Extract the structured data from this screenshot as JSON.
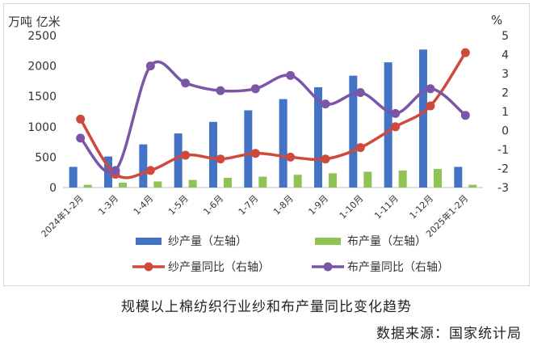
{
  "chart_data": {
    "type": "bar",
    "left_unit": "万吨 亿米",
    "right_unit": "%",
    "categories": [
      "2024年1-2月",
      "1-3月",
      "1-4月",
      "1-5月",
      "1-6月",
      "1-7月",
      "1-8月",
      "1-9月",
      "1-10月",
      "1-11月",
      "1-12月",
      "2025年1-2月"
    ],
    "left_axis": {
      "min": 0,
      "max": 2500,
      "ticks": [
        "0",
        "500",
        "1000",
        "1500",
        "2000",
        "2500"
      ]
    },
    "right_axis": {
      "min": -3,
      "max": 5,
      "ticks": [
        "-3",
        "-2",
        "-1",
        "0",
        "1",
        "2",
        "3",
        "4",
        "5"
      ]
    },
    "series": [
      {
        "name": "纱产量（左轴）",
        "kind": "bar",
        "axis": "left",
        "color": "#4472c4",
        "values": [
          340,
          510,
          710,
          890,
          1080,
          1270,
          1455,
          1650,
          1840,
          2060,
          2270,
          340
        ]
      },
      {
        "name": "布产量（左轴）",
        "kind": "bar",
        "axis": "left",
        "color": "#8fc454",
        "values": [
          45,
          80,
          100,
          125,
          160,
          180,
          210,
          235,
          260,
          280,
          305,
          45
        ]
      },
      {
        "name": "纱产量同比（右轴）",
        "kind": "line",
        "axis": "right",
        "color": "#cf4a3d",
        "values": [
          0.6,
          -2.3,
          -2.1,
          -1.3,
          -1.5,
          -1.2,
          -1.4,
          -1.5,
          -0.9,
          0.2,
          1.3,
          4.1
        ]
      },
      {
        "name": "布产量同比（右轴）",
        "kind": "line",
        "axis": "right",
        "color": "#7c56a6",
        "values": [
          -0.4,
          -2.1,
          3.4,
          2.5,
          2.1,
          2.2,
          2.9,
          1.4,
          2.0,
          0.9,
          2.2,
          0.8
        ]
      }
    ]
  },
  "captions": {
    "title": "规模以上棉纺织行业纱和布产量同比变化趋势",
    "source": "数据来源：国家统计局"
  }
}
